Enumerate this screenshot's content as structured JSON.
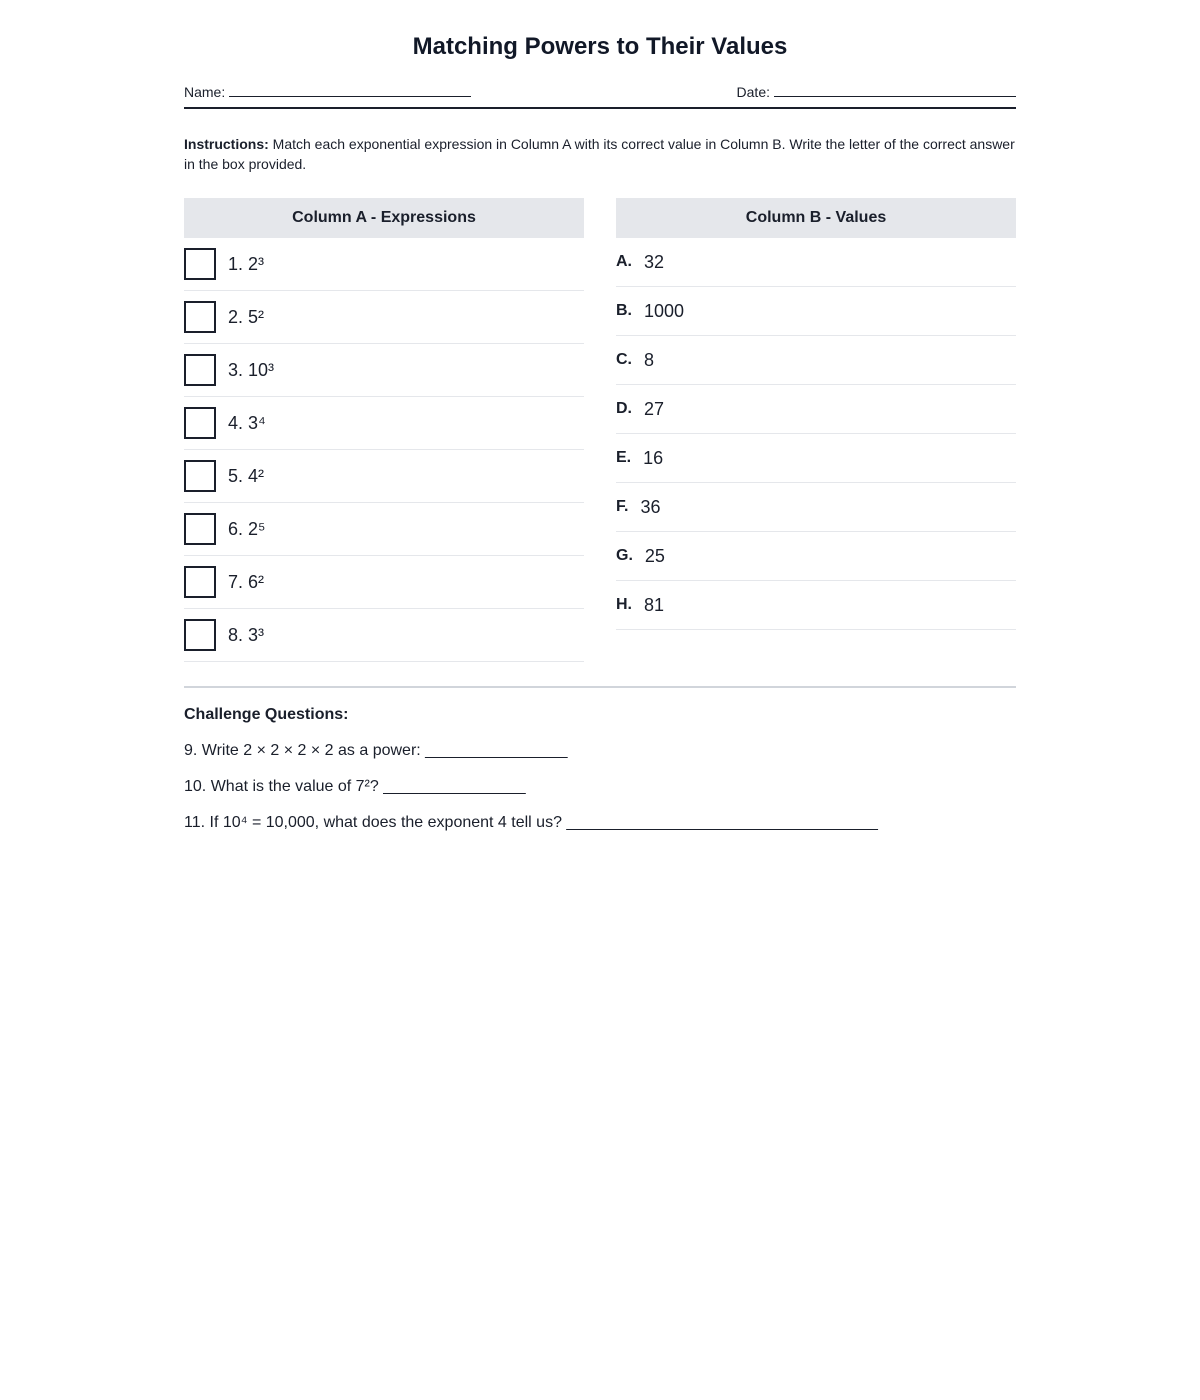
{
  "title": "Matching Powers to Their Values",
  "name_label": "Name:",
  "date_label": "Date:",
  "instructions_label": "Instructions:",
  "instructions_text": " Match each exponential expression in Column A with its correct value in Column B. Write the letter of the correct answer in the box provided.",
  "column_a": {
    "header": "Column A - Expressions",
    "items": [
      "1. 2³",
      "2. 5²",
      "3. 10³",
      "4. 3⁴",
      "5. 4²",
      "6. 2⁵",
      "7. 6²",
      "8. 3³"
    ]
  },
  "column_b": {
    "header": "Column B - Values",
    "items": [
      {
        "letter": "A.",
        "value": "32"
      },
      {
        "letter": "B.",
        "value": "1000"
      },
      {
        "letter": "C.",
        "value": "8"
      },
      {
        "letter": "D.",
        "value": "27"
      },
      {
        "letter": "E.",
        "value": "16"
      },
      {
        "letter": "F.",
        "value": "36"
      },
      {
        "letter": "G.",
        "value": "25"
      },
      {
        "letter": "H.",
        "value": "81"
      }
    ]
  },
  "challenge": {
    "heading": "Challenge Questions:",
    "questions": [
      "9. Write 2 × 2 × 2 × 2 as a power: ________________",
      "10. What is the value of 7²? ________________",
      "11. If 10⁴ = 10,000, what does the exponent 4 tell us? ___________________________________"
    ]
  }
}
